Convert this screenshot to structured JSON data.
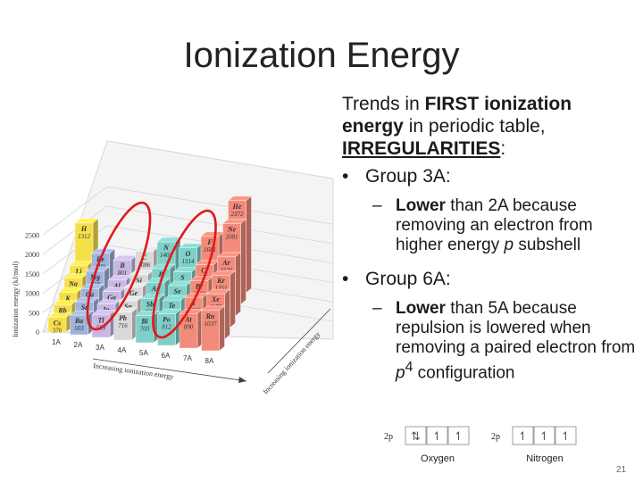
{
  "slide": {
    "title": "Ionization Energy",
    "page_number": "21"
  },
  "text": {
    "intro": {
      "p1": "Trends in ",
      "p2": "FIRST ionization energy",
      "p3": " in periodic table, ",
      "p4": "IRREGULARITIES",
      "p5": ":"
    },
    "bullet1": "Group 3A:",
    "sub1": {
      "dash": "–",
      "lead": "Lower",
      "rest": " than 2A because removing an electron from higher energy ",
      "italic": "p",
      "tail": " subshell"
    },
    "bullet2": "Group  6A:",
    "sub2": {
      "dash": "–",
      "lead": "Lower",
      "rest": " than 5A because repulsion is lowered when removing a paired electron from ",
      "italic": "p",
      "sup": "4",
      "tail": " configuration"
    }
  },
  "chart_data": {
    "type": "bar",
    "ylabel": "Ionization energy (kJ/mol)",
    "xlabel": "Increasing ionization energy",
    "zlabel": "Increasing ionization energy",
    "yticks": [
      "0",
      "500",
      "1000",
      "1500",
      "2000",
      "2500"
    ],
    "ylim": [
      0,
      2500
    ],
    "groups": [
      "1A",
      "2A",
      "3A",
      "4A",
      "5A",
      "6A",
      "7A",
      "8A"
    ],
    "series": [
      {
        "group": "1A",
        "elements": [
          {
            "symbol": "H",
            "value": 1312
          },
          {
            "symbol": "Li",
            "value": 520
          },
          {
            "symbol": "Na",
            "value": 496
          },
          {
            "symbol": "K",
            "value": 419
          },
          {
            "symbol": "Rb",
            "value": 403
          },
          {
            "symbol": "Cs",
            "value": 376
          }
        ]
      },
      {
        "group": "2A",
        "elements": [
          {
            "symbol": "Be",
            "value": 899
          },
          {
            "symbol": "Mg",
            "value": 738
          },
          {
            "symbol": "Ca",
            "value": 590
          },
          {
            "symbol": "Sr",
            "value": 549
          },
          {
            "symbol": "Ba",
            "value": 503
          }
        ]
      },
      {
        "group": "3A",
        "elements": [
          {
            "symbol": "B",
            "value": 801
          },
          {
            "symbol": "Al",
            "value": 578
          },
          {
            "symbol": "Ga",
            "value": 579
          },
          {
            "symbol": "In",
            "value": 558
          },
          {
            "symbol": "Tl",
            "value": 589
          }
        ]
      },
      {
        "group": "4A",
        "elements": [
          {
            "symbol": "C",
            "value": 1086
          },
          {
            "symbol": "Si",
            "value": 786
          },
          {
            "symbol": "Ge",
            "value": 762
          },
          {
            "symbol": "Sn",
            "value": 709
          },
          {
            "symbol": "Pb",
            "value": 716
          }
        ]
      },
      {
        "group": "5A",
        "elements": [
          {
            "symbol": "N",
            "value": 1402
          },
          {
            "symbol": "P",
            "value": 1012
          },
          {
            "symbol": "As",
            "value": 947
          },
          {
            "symbol": "Sb",
            "value": 834
          },
          {
            "symbol": "Bi",
            "value": 703
          }
        ]
      },
      {
        "group": "6A",
        "elements": [
          {
            "symbol": "O",
            "value": 1314
          },
          {
            "symbol": "S",
            "value": 1000
          },
          {
            "symbol": "Se",
            "value": 941
          },
          {
            "symbol": "Te",
            "value": 869
          },
          {
            "symbol": "Po",
            "value": 812
          }
        ]
      },
      {
        "group": "7A",
        "elements": [
          {
            "symbol": "F",
            "value": 1681
          },
          {
            "symbol": "Cl",
            "value": 1251
          },
          {
            "symbol": "Br",
            "value": 1140
          },
          {
            "symbol": "I",
            "value": 1008
          },
          {
            "symbol": "At",
            "value": 890
          }
        ]
      },
      {
        "group": "8A",
        "elements": [
          {
            "symbol": "He",
            "value": 2372
          },
          {
            "symbol": "Ne",
            "value": 2081
          },
          {
            "symbol": "Ar",
            "value": 1521
          },
          {
            "symbol": "Kr",
            "value": 1351
          },
          {
            "symbol": "Xe",
            "value": 1170
          },
          {
            "symbol": "Rn",
            "value": 1037
          }
        ]
      }
    ],
    "highlighted_groups": [
      "3A",
      "6A"
    ],
    "colors": {
      "1A": "#f6e04a",
      "2A": "#9fb3dc",
      "3A": "#c7b7e2",
      "4A": "#d9d9d9",
      "5A": "#7fd0c8",
      "6A": "#7fd0c8",
      "7A": "#f28b7a",
      "8A": "#f28b7a",
      "highlight": "#e0191b"
    }
  },
  "orbital_diagrams": [
    {
      "sublevel": "2p",
      "boxes": [
        "⇅",
        "↿",
        "↿"
      ],
      "label": "Oxygen"
    },
    {
      "sublevel": "2p",
      "boxes": [
        "↿",
        "↿",
        "↿"
      ],
      "label": "Nitrogen"
    }
  ]
}
